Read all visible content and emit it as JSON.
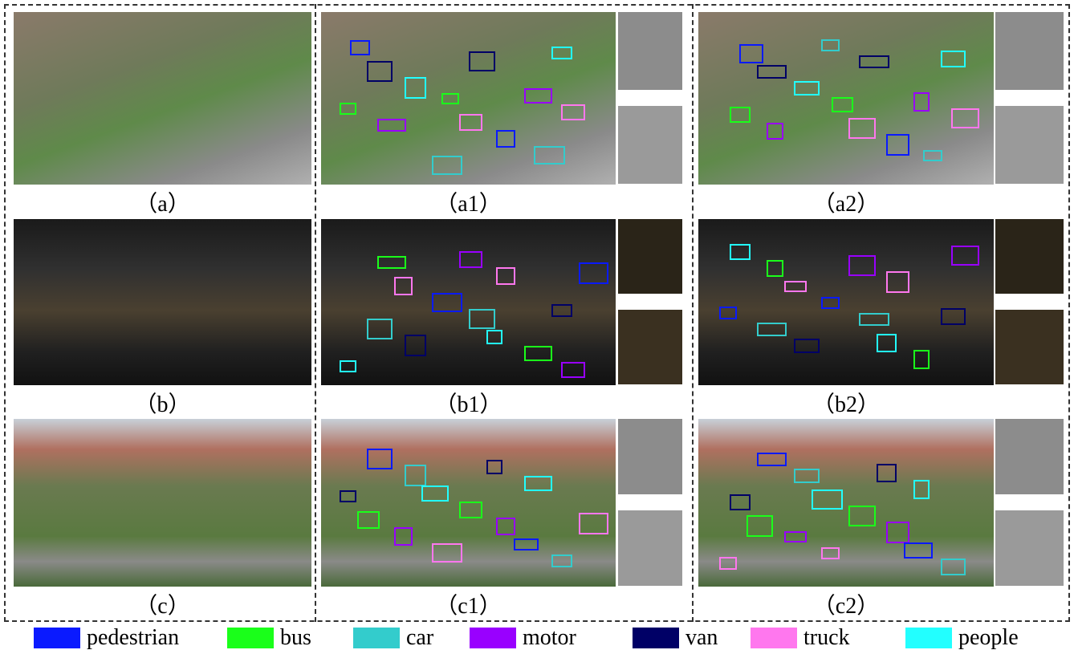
{
  "panels": [
    {
      "caption": "（a）"
    },
    {
      "caption": "（a1）"
    },
    {
      "caption": "（a2）"
    },
    {
      "caption": "（b）"
    },
    {
      "caption": "（b1）"
    },
    {
      "caption": "（b2）"
    },
    {
      "caption": "（c）"
    },
    {
      "caption": "（c1）"
    },
    {
      "caption": "（c2）"
    }
  ],
  "legend": [
    {
      "label": "pedestrian",
      "color": "#0a1aff"
    },
    {
      "label": "bus",
      "color": "#1aff1a"
    },
    {
      "label": "car",
      "color": "#33cccc"
    },
    {
      "label": "motor",
      "color": "#9900ff"
    },
    {
      "label": "van",
      "color": "#000066"
    },
    {
      "label": "truck",
      "color": "#ff77ee"
    },
    {
      "label": "people",
      "color": "#22ffff"
    }
  ]
}
